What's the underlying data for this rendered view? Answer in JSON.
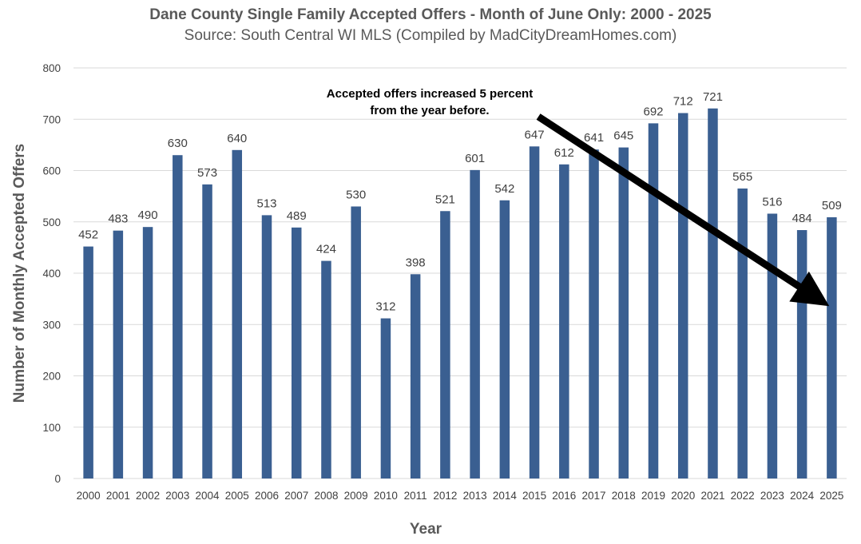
{
  "chart_data": {
    "type": "bar",
    "title": "Dane County Single Family Accepted Offers - Month of June Only: 2000 - 2025",
    "subtitle": "Source: South Central WI MLS (Compiled by MadCityDreamHomes.com)",
    "xlabel": "Year",
    "ylabel": "Number of Monthly Accepted Offers",
    "ylim": [
      0,
      800
    ],
    "yticks": [
      0,
      100,
      200,
      300,
      400,
      500,
      600,
      700,
      800
    ],
    "grid": true,
    "bar_color": "#3a5f91",
    "categories": [
      "2000",
      "2001",
      "2002",
      "2003",
      "2004",
      "2005",
      "2006",
      "2007",
      "2008",
      "2009",
      "2010",
      "2011",
      "2012",
      "2013",
      "2014",
      "2015",
      "2016",
      "2017",
      "2018",
      "2019",
      "2020",
      "2021",
      "2022",
      "2023",
      "2024",
      "2025"
    ],
    "values": [
      452,
      483,
      490,
      630,
      573,
      640,
      513,
      489,
      424,
      530,
      312,
      398,
      521,
      601,
      542,
      647,
      612,
      641,
      645,
      692,
      712,
      721,
      565,
      516,
      484,
      509
    ],
    "annotation": {
      "lines": [
        "Accepted offers increased 5 percent",
        "from the year before."
      ],
      "arrow_from_category": "2015",
      "arrow_to_category": "2025"
    }
  }
}
